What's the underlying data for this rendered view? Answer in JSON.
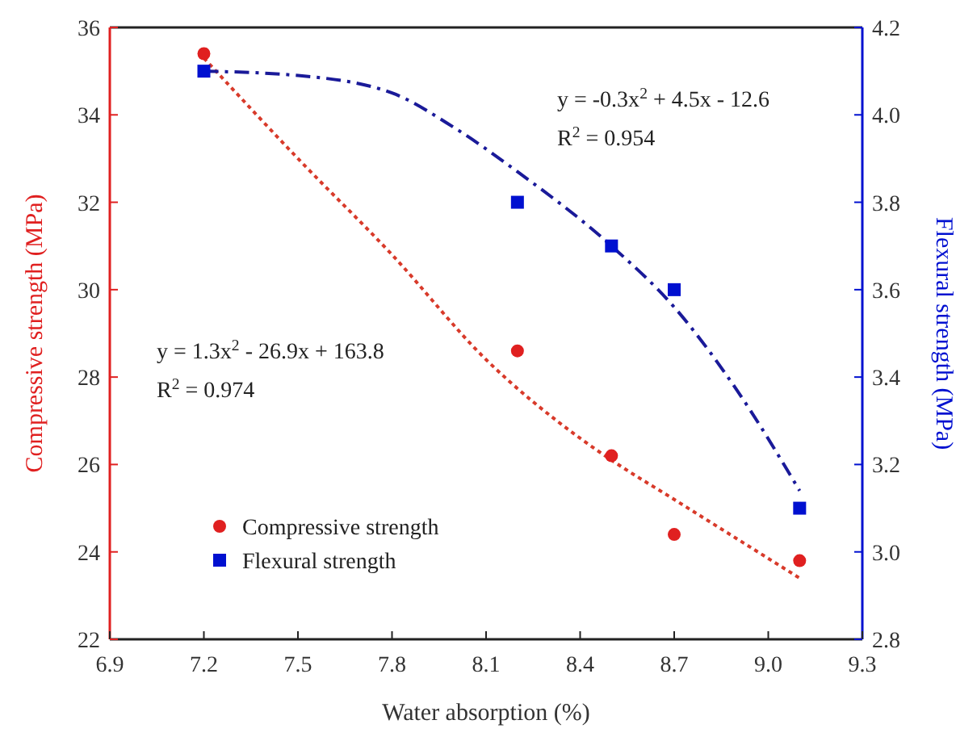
{
  "chart_data": {
    "type": "scatter",
    "xlabel": "Water absorption (%)",
    "ylabel": "Compressive strength (MPa)",
    "y2label": "Flexural strength (MPa)",
    "xlim": [
      6.9,
      9.3
    ],
    "xticks": [
      6.9,
      7.2,
      7.5,
      7.8,
      8.1,
      8.4,
      8.7,
      {
        "value": 9,
        "label": "9.0"
      },
      9.3
    ],
    "ylim": [
      22,
      36
    ],
    "yticks": [
      22,
      24,
      26,
      28,
      30,
      32,
      34,
      36
    ],
    "y2lim": [
      2.8,
      4.2
    ],
    "y2ticks": [
      2.8,
      {
        "value": 3,
        "label": "3.0"
      },
      3.2,
      3.4,
      3.6,
      3.8,
      {
        "value": 4,
        "label": "4.0"
      },
      4.2
    ],
    "legend": "bottom left",
    "grid": false,
    "series": [
      {
        "name": "Compressive strength",
        "marker": "circle",
        "color": "#e02020",
        "axis": "y",
        "x": [
          7.2,
          8.2,
          8.5,
          8.7,
          9.1
        ],
        "values": [
          35.4,
          28.6,
          26.2,
          24.4,
          23.8
        ]
      },
      {
        "name": "Flexural strength",
        "marker": "square",
        "color": "#0010d0",
        "axis": "y2",
        "x": [
          7.2,
          8.2,
          8.5,
          8.7,
          9.1
        ],
        "values": [
          4.1,
          3.8,
          3.7,
          3.6,
          3.1
        ]
      },
      {
        "type": "line",
        "marker": "none",
        "line_style": "dotted",
        "color": "#d83a2a",
        "axis": "y",
        "x": [
          7.2,
          7.5,
          7.8,
          8.1,
          8.4,
          8.5,
          8.7,
          8.9,
          9.1
        ],
        "values": [
          35.3,
          33.0,
          30.8,
          28.4,
          26.6,
          26.1,
          25.2,
          24.3,
          23.4
        ]
      },
      {
        "type": "line",
        "marker": "none",
        "line_style": "dashed",
        "color": "#1a1a99",
        "axis": "y2",
        "x": [
          7.2,
          7.5,
          7.8,
          8.0,
          8.2,
          8.5,
          8.7,
          8.9,
          9.1
        ],
        "values": [
          4.1,
          4.09,
          4.05,
          3.97,
          3.87,
          3.7,
          3.56,
          3.37,
          3.14
        ]
      }
    ],
    "annotations": [
      "y = -0.3x$^{2}$ + 4.5x - 12.6",
      "R$^{2}$ = 0.954",
      "y = 1.3x$^{2}$ - 26.9x + 163.8",
      "R$^{2}$ = 0.974"
    ]
  }
}
